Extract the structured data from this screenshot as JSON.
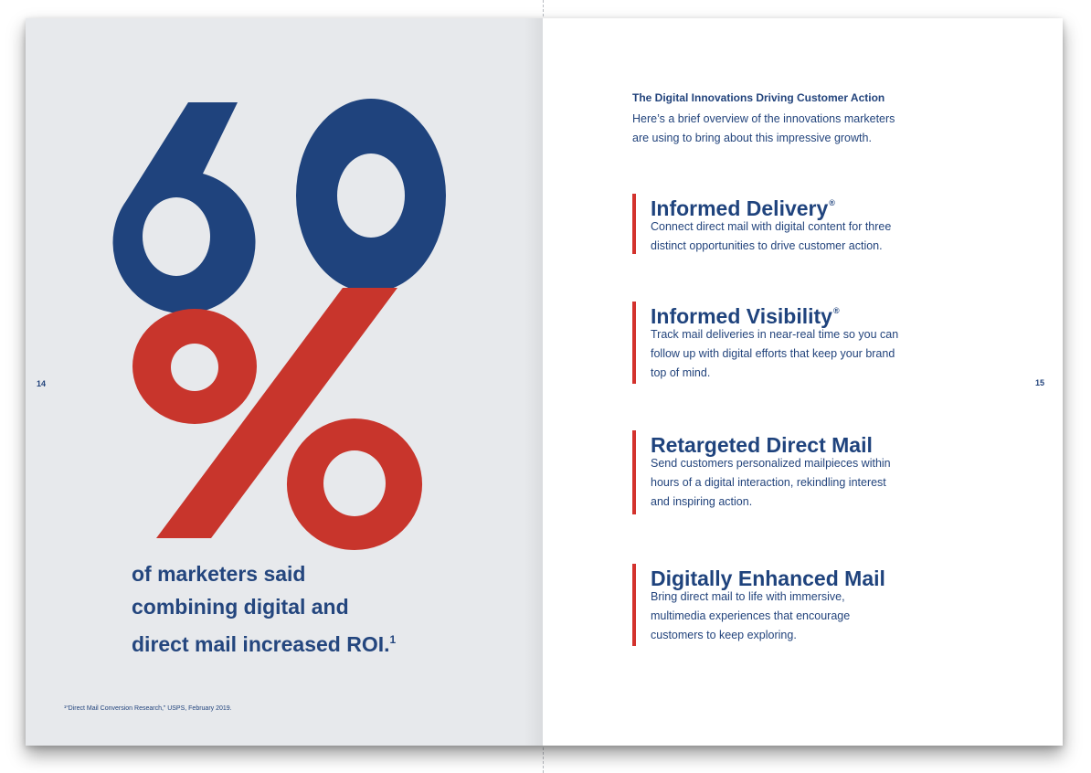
{
  "left_page": {
    "page_number": "14",
    "big_number": "60",
    "percent_sign": "%",
    "stat_lines": [
      "of marketers said",
      "combining digital and",
      "direct mail increased ROI."
    ],
    "footnote_marker": "1",
    "footnote": "¹“Direct Mail Conversion Research,” USPS, February 2019."
  },
  "right_page": {
    "page_number": "15",
    "intro_title": "The Digital Innovations Driving Customer Action",
    "intro_lines": [
      "Here’s a brief overview of the innovations marketers",
      "are using to bring about this impressive growth."
    ],
    "features": [
      {
        "title": "Informed Delivery",
        "mark": "®",
        "lines": [
          "Connect direct mail with digital content for three",
          "distinct opportunities to drive customer action."
        ]
      },
      {
        "title": "Informed Visibility",
        "mark": "®",
        "lines": [
          "Track mail deliveries in near-real time so you can",
          "follow up with digital efforts that keep your brand",
          "top of mind."
        ]
      },
      {
        "title": "Retargeted Direct Mail",
        "mark": "",
        "lines": [
          "Send customers personalized mailpieces within",
          "hours of a digital interaction, rekindling interest",
          "and inspiring action."
        ]
      },
      {
        "title": "Digitally Enhanced Mail",
        "mark": "",
        "lines": [
          "Bring direct mail to life with immersive,",
          "multimedia experiences that encourage",
          "customers to keep exploring."
        ]
      }
    ]
  },
  "colors": {
    "navy": "#1f437d",
    "red": "#c8352c",
    "accent_bar": "#d3322d",
    "left_page_bg": "#e7e9ec"
  }
}
